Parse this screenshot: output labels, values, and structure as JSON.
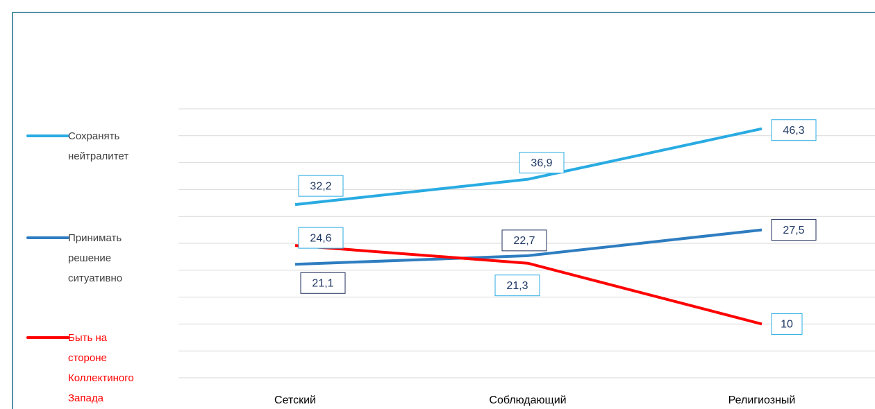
{
  "chart_data": {
    "type": "line",
    "categories": [
      "Сетский",
      "Соблюдающий",
      "Религиозный"
    ],
    "series": [
      {
        "name": "Сохранять нейтралитет",
        "color": "#29abe2",
        "values": [
          32.2,
          36.9,
          46.3
        ],
        "value_labels": [
          "32,2",
          "36,9",
          "46,3"
        ],
        "label_border": "#29abe2"
      },
      {
        "name": "Принимать решение ситуативно",
        "color": "#2e7dc0",
        "values": [
          21.1,
          22.7,
          27.5
        ],
        "value_labels": [
          "21,1",
          "22,7",
          "27,5"
        ],
        "label_border": "#1f2d5c"
      },
      {
        "name": "Быть на стороне Коллектиного Запада",
        "color": "#ff0000",
        "values": [
          24.6,
          21.3,
          10
        ],
        "value_labels": [
          "24,6",
          "21,3",
          "10"
        ],
        "label_border": "#29abe2"
      }
    ],
    "ylim": [
      0,
      50
    ],
    "yticks": [
      0,
      5,
      10,
      15,
      20,
      25,
      30,
      35,
      40,
      45,
      50
    ],
    "grid": true
  }
}
